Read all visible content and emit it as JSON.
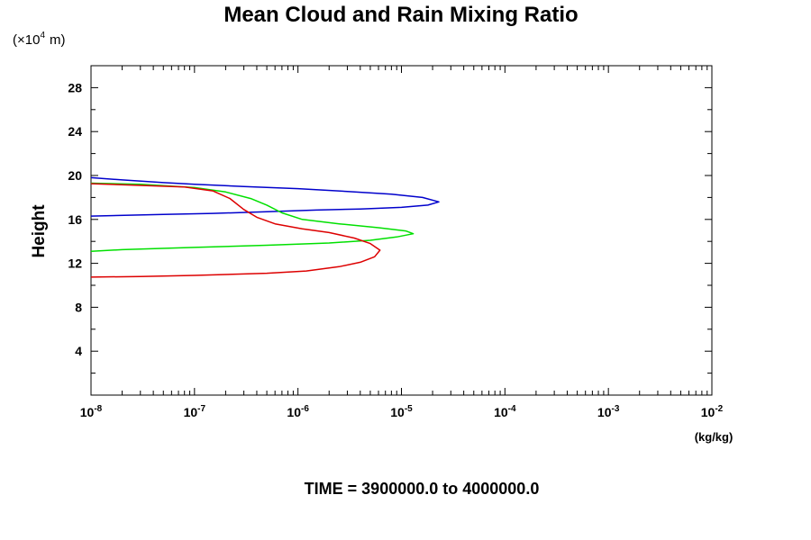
{
  "chart_data": {
    "type": "line",
    "title": "Mean Cloud and Rain Mixing Ratio",
    "ylabel": "Height",
    "y_scale_label": "(×10",
    "y_scale_exp": "4",
    "y_scale_unit": "m)",
    "xlabel": "(kg/kg)",
    "x_scale": "log",
    "xlim": [
      1e-08,
      0.01
    ],
    "ylim": [
      0,
      30
    ],
    "y_ticks": [
      4,
      8,
      12,
      16,
      20,
      24,
      28
    ],
    "x_ticks": [
      {
        "base": "10",
        "exp": "-8",
        "value": 1e-08
      },
      {
        "base": "10",
        "exp": "-7",
        "value": 1e-07
      },
      {
        "base": "10",
        "exp": "-6",
        "value": 1e-06
      },
      {
        "base": "10",
        "exp": "-5",
        "value": 1e-05
      },
      {
        "base": "10",
        "exp": "-4",
        "value": 0.0001
      },
      {
        "base": "10",
        "exp": "-3",
        "value": 0.001
      },
      {
        "base": "10",
        "exp": "-2",
        "value": 0.01
      }
    ],
    "grid": false,
    "footer": "TIME = 3900000.0 to 4000000.0",
    "series": [
      {
        "color": "#0000cc",
        "points": [
          [
            1e-08,
            19.8
          ],
          [
            2e-08,
            19.6
          ],
          [
            5e-08,
            19.35
          ],
          [
            1e-07,
            19.2
          ],
          [
            3e-07,
            19.0
          ],
          [
            1e-06,
            18.8
          ],
          [
            3e-06,
            18.55
          ],
          [
            8e-06,
            18.3
          ],
          [
            1.6e-05,
            18.0
          ],
          [
            2.3e-05,
            17.6
          ],
          [
            1.8e-05,
            17.3
          ],
          [
            1e-05,
            17.1
          ],
          [
            4e-06,
            16.95
          ],
          [
            1.5e-06,
            16.85
          ],
          [
            5e-07,
            16.7
          ],
          [
            1.5e-07,
            16.55
          ],
          [
            5e-08,
            16.45
          ],
          [
            1e-08,
            16.3
          ]
        ]
      },
      {
        "color": "#00e000",
        "points": [
          [
            1e-08,
            19.3
          ],
          [
            3e-08,
            19.2
          ],
          [
            1e-07,
            18.9
          ],
          [
            2e-07,
            18.5
          ],
          [
            3.5e-07,
            17.9
          ],
          [
            5e-07,
            17.3
          ],
          [
            7e-07,
            16.6
          ],
          [
            1.1e-06,
            16.0
          ],
          [
            2.5e-06,
            15.6
          ],
          [
            6e-06,
            15.25
          ],
          [
            1.1e-05,
            14.95
          ],
          [
            1.3e-05,
            14.7
          ],
          [
            9e-06,
            14.4
          ],
          [
            5e-06,
            14.1
          ],
          [
            2e-06,
            13.85
          ],
          [
            5e-07,
            13.65
          ],
          [
            1e-07,
            13.45
          ],
          [
            2e-08,
            13.25
          ],
          [
            1e-08,
            13.1
          ]
        ]
      },
      {
        "color": "#dd0000",
        "points": [
          [
            1e-08,
            19.25
          ],
          [
            3e-08,
            19.1
          ],
          [
            8e-08,
            18.95
          ],
          [
            1.5e-07,
            18.6
          ],
          [
            2.2e-07,
            17.9
          ],
          [
            3e-07,
            16.9
          ],
          [
            4e-07,
            16.2
          ],
          [
            6e-07,
            15.6
          ],
          [
            1.1e-06,
            15.15
          ],
          [
            2e-06,
            14.8
          ],
          [
            3.5e-06,
            14.3
          ],
          [
            5e-06,
            13.8
          ],
          [
            6.2e-06,
            13.2
          ],
          [
            5.5e-06,
            12.6
          ],
          [
            4e-06,
            12.1
          ],
          [
            2.5e-06,
            11.7
          ],
          [
            1.2e-06,
            11.3
          ],
          [
            5e-07,
            11.1
          ],
          [
            1e-07,
            10.9
          ],
          [
            3e-08,
            10.8
          ],
          [
            1e-08,
            10.75
          ]
        ]
      }
    ]
  }
}
